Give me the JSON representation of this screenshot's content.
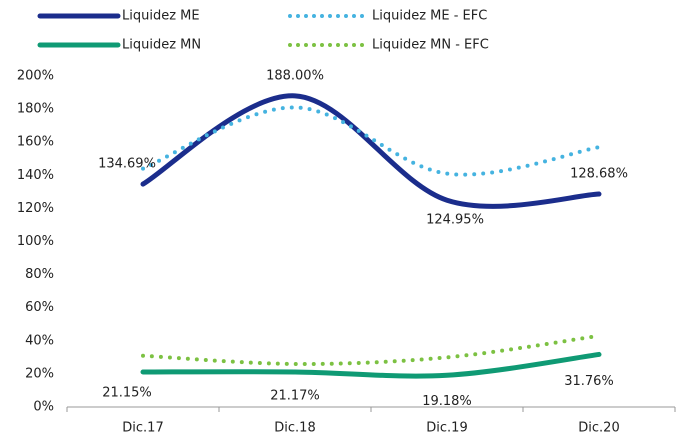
{
  "chart_data": {
    "type": "line",
    "categories": [
      "Dic.17",
      "Dic.18",
      "Dic.19",
      "Dic.20"
    ],
    "series": [
      {
        "name": "Liquidez ME",
        "color": "#1b2d8c",
        "dash": false,
        "values": [
          134.69,
          188.0,
          124.95,
          128.68
        ],
        "value_labels": [
          "134.69%",
          "188.00%",
          "124.95%",
          "128.68%"
        ]
      },
      {
        "name": "Liquidez ME - EFC",
        "color": "#45b3e0",
        "dash": true,
        "values": [
          144,
          181,
          141,
          157
        ]
      },
      {
        "name": "Liquidez MN",
        "color": "#0f9a74",
        "dash": false,
        "values": [
          21.15,
          21.17,
          19.18,
          31.76
        ],
        "value_labels": [
          "21.15%",
          "21.17%",
          "19.18%",
          "31.76%"
        ]
      },
      {
        "name": "Liquidez MN - EFC",
        "color": "#7cc142",
        "dash": true,
        "values": [
          31,
          26,
          30,
          43
        ]
      }
    ],
    "ylim": [
      0,
      200
    ],
    "yticks": [
      {
        "value": 0,
        "label": "0%"
      },
      {
        "value": 20,
        "label": "20%"
      },
      {
        "value": 40,
        "label": "40%"
      },
      {
        "value": 60,
        "label": "60%"
      },
      {
        "value": 80,
        "label": "80%"
      },
      {
        "value": 100,
        "label": "100%"
      },
      {
        "value": 120,
        "label": "120%"
      },
      {
        "value": 140,
        "label": "140%"
      },
      {
        "value": 160,
        "label": "160%"
      },
      {
        "value": 180,
        "label": "180%"
      },
      {
        "value": 200,
        "label": "200%"
      }
    ],
    "grid": false,
    "legend": "top"
  }
}
